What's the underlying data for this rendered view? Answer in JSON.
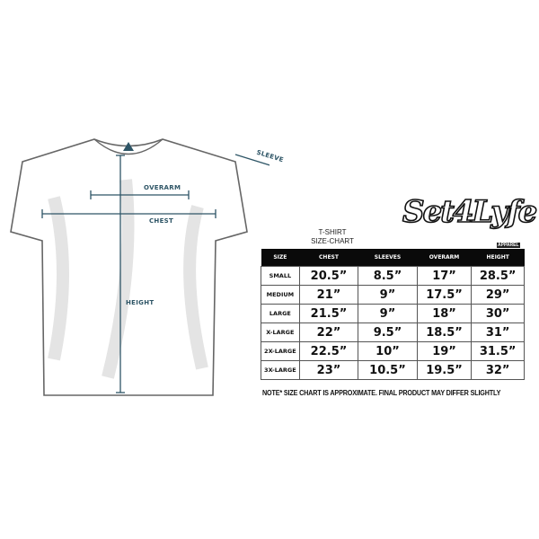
{
  "measure_labels": {
    "sleeve": "SLEEVE",
    "overarm": "OVERARM",
    "chest": "CHEST",
    "height": "HEIGHT"
  },
  "chart_title": [
    "T-SHIRT",
    "SIZE-CHART"
  ],
  "logo_text": "Set4Lyfe",
  "logo_sub": "APPAREL",
  "table": {
    "headers": [
      "SIZE",
      "CHEST",
      "SLEEVES",
      "OVERARM",
      "HEIGHT"
    ],
    "rows": [
      [
        "SMALL",
        "20.5”",
        "8.5”",
        "17”",
        "28.5”"
      ],
      [
        "MEDIUM",
        "21”",
        "9”",
        "17.5”",
        "29”"
      ],
      [
        "LARGE",
        "21.5”",
        "9”",
        "18”",
        "30”"
      ],
      [
        "X-LARGE",
        "22”",
        "9.5”",
        "18.5”",
        "31”"
      ],
      [
        "2X-LARGE",
        "22.5”",
        "10”",
        "19”",
        "31.5”"
      ],
      [
        "3X-LARGE",
        "23”",
        "10.5”",
        "19.5”",
        "32”"
      ]
    ]
  },
  "note": "NOTE* SIZE CHART IS APPROXIMATE. FINAL PRODUCT MAY DIFFER SLIGHTLY",
  "colors": {
    "measure_line": "#2e5566",
    "header_bg": "#0a0a0a"
  }
}
